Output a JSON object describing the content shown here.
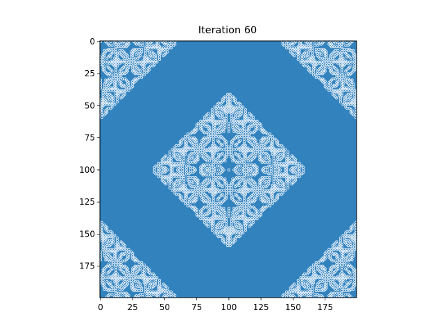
{
  "chart_data": {
    "type": "heatmap",
    "title": "Iteration 60",
    "xlabel": "",
    "ylabel": "",
    "grid": false,
    "xlim": [
      0,
      200
    ],
    "ylim": [
      200,
      0
    ],
    "x_ticks": [
      0,
      25,
      50,
      75,
      100,
      125,
      150,
      175
    ],
    "y_ticks": [
      0,
      25,
      50,
      75,
      100,
      125,
      150,
      175
    ],
    "x_tick_labels": [
      "0",
      "25",
      "50",
      "75",
      "100",
      "125",
      "150",
      "175"
    ],
    "y_tick_labels": [
      "0",
      "25",
      "50",
      "75",
      "100",
      "125",
      "150",
      "175"
    ],
    "grid_size": 200,
    "colors": {
      "background": "#3182bd",
      "active": "#deebf7"
    },
    "patterns": [
      {
        "center": [
          100,
          100
        ],
        "radius": 60
      },
      {
        "center": [
          0,
          0
        ],
        "radius": 60
      },
      {
        "center": [
          200,
          0
        ],
        "radius": 60
      },
      {
        "center": [
          0,
          200
        ],
        "radius": 60
      },
      {
        "center": [
          200,
          200
        ],
        "radius": 60
      }
    ]
  }
}
